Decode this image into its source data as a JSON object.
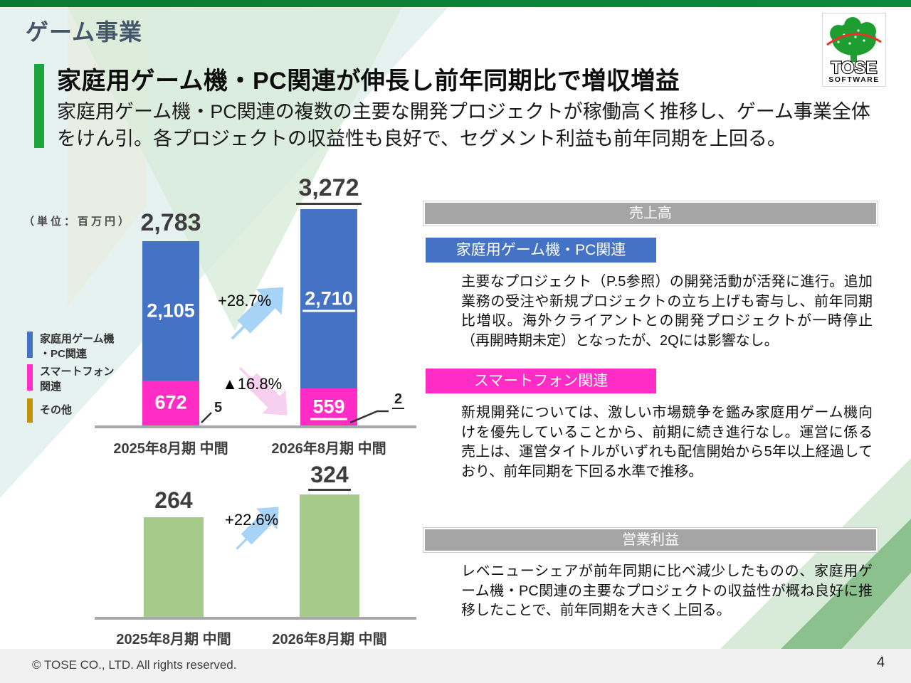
{
  "slide": {
    "kicker": "ゲーム事業",
    "heading": "家庭用ゲーム機・PC関連が伸長し前年同期比で増収増益",
    "lead": "家庭用ゲーム機・PC関連の複数の主要な開発プロジェクトが稼働高く推移し、ゲーム事業全体をけん引。各プロジェクトの収益性も良好で、セグメント利益も前年同期を上回る。",
    "footer": "© TOSE CO., LTD. All rights reserved.",
    "page_number": "4"
  },
  "logo": {
    "line1": "TOSE",
    "line2": "SOFTWARE"
  },
  "colors": {
    "accent_green": "#1ea43d",
    "strip_green": "#0b7e35",
    "console_blue": "#4472c4",
    "smartphone_pink": "#ff2cc6",
    "other_gold": "#c0930a",
    "profit_green": "#a6ca8a",
    "header_gray": "#a5a5a5",
    "arrow_blue": "#a7d3f6",
    "arrow_pink": "#f8d0ef"
  },
  "chart_data": [
    {
      "type": "bar",
      "subtype": "stacked",
      "title": "売上高",
      "unit_label": "（単位：百万円）",
      "categories": [
        "2025年8月期 中間",
        "2026年8月期 中間"
      ],
      "series": [
        {
          "name": "家庭用ゲーム機・PC関連",
          "color": "#4472c4",
          "values": [
            2105,
            2710
          ],
          "values_display": [
            "2,105",
            "2,710"
          ]
        },
        {
          "name": "スマートフォン関連",
          "color": "#ff2cc6",
          "values": [
            672,
            559
          ],
          "values_display": [
            "672",
            "559"
          ]
        },
        {
          "name": "その他",
          "color": "#c0930a",
          "values": [
            5,
            2
          ],
          "values_display": [
            "5",
            "2"
          ]
        }
      ],
      "totals": [
        2783,
        3272
      ],
      "totals_display": [
        "2,783",
        "3,272"
      ],
      "change_labels": [
        "+28.7%",
        "▲16.8%"
      ],
      "legend": [
        {
          "lines": [
            "家庭用ゲーム機",
            "・PC関連"
          ],
          "color": "#4472c4"
        },
        {
          "lines": [
            "スマートフォン",
            "関連"
          ],
          "color": "#ff2cc6"
        },
        {
          "lines": [
            "その他"
          ],
          "color": "#c0930a"
        }
      ],
      "ylim": [
        0,
        3272
      ],
      "grid": false,
      "legend_position": "left"
    },
    {
      "type": "bar",
      "title": "営業利益",
      "categories": [
        "2025年8月期 中間",
        "2026年8月期 中間"
      ],
      "values": [
        264,
        324
      ],
      "values_display": [
        "264",
        "324"
      ],
      "change_label": "+22.6%",
      "color": "#a6ca8a",
      "ylim": [
        0,
        324
      ],
      "grid": false
    }
  ],
  "sections": [
    {
      "title": "売上高"
    },
    {
      "title": "家庭用ゲーム機・PC関連",
      "body": "主要なプロジェクト（P.5参照）の開発活動が活発に進行。追加業務の受注や新規プロジェクトの立ち上げも寄与し、前年同期比増収。海外クライアントとの開発プロジェクトが一時停止（再開時期未定）となったが、2Qには影響なし。"
    },
    {
      "title": "スマートフォン関連",
      "body": "新規開発については、激しい市場競争を鑑み家庭用ゲーム機向けを優先していることから、前期に続き進行なし。運営に係る売上は、運営タイトルがいずれも配信開始から5年以上経過しており、前年同期を下回る水準で推移。"
    },
    {
      "title": "営業利益",
      "body": "レベニューシェアが前年同期に比べ減少したものの、家庭用ゲーム機・PC関連の主要なプロジェクトの収益性が概ね良好に推移したことで、前年同期を大きく上回る。"
    }
  ]
}
